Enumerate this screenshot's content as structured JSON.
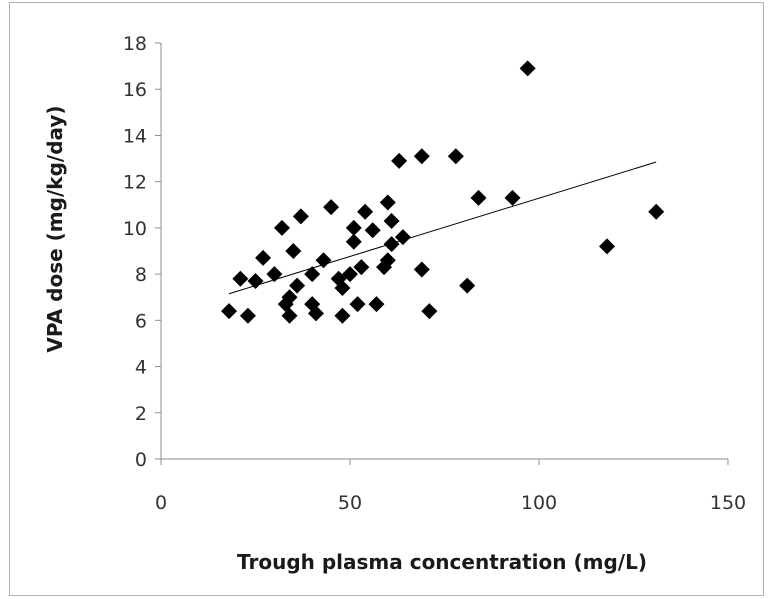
{
  "chart_data": {
    "type": "scatter",
    "title": "",
    "xlabel": "Trough plasma concentration (mg/L)",
    "ylabel": "VPA dose (mg/kg/day)",
    "xlim": [
      0,
      150
    ],
    "ylim": [
      0,
      18
    ],
    "x_ticks": [
      "0",
      "50",
      "100",
      "150"
    ],
    "y_ticks": [
      "0",
      "2",
      "4",
      "6",
      "8",
      "10",
      "12",
      "14",
      "16",
      "18"
    ],
    "grid": false,
    "legend": "none",
    "marker": "diamond",
    "marker_color": "#000000",
    "points": [
      [
        18,
        6.4
      ],
      [
        21,
        7.8
      ],
      [
        23,
        6.2
      ],
      [
        25,
        7.7
      ],
      [
        27,
        8.7
      ],
      [
        30,
        8.0
      ],
      [
        32,
        10.0
      ],
      [
        33,
        6.7
      ],
      [
        34,
        7.0
      ],
      [
        34,
        6.2
      ],
      [
        35,
        9.0
      ],
      [
        36,
        7.5
      ],
      [
        37,
        10.5
      ],
      [
        40,
        8.0
      ],
      [
        40,
        6.7
      ],
      [
        41,
        6.3
      ],
      [
        43,
        8.6
      ],
      [
        45,
        10.9
      ],
      [
        47,
        7.8
      ],
      [
        48,
        6.2
      ],
      [
        48,
        7.4
      ],
      [
        50,
        8.0
      ],
      [
        51,
        9.4
      ],
      [
        51,
        10.0
      ],
      [
        52,
        6.7
      ],
      [
        53,
        8.3
      ],
      [
        54,
        10.7
      ],
      [
        56,
        9.9
      ],
      [
        57,
        6.7
      ],
      [
        59,
        8.3
      ],
      [
        60,
        8.6
      ],
      [
        60,
        11.1
      ],
      [
        61,
        9.3
      ],
      [
        61,
        10.3
      ],
      [
        63,
        12.9
      ],
      [
        64,
        9.6
      ],
      [
        69,
        8.2
      ],
      [
        69,
        13.1
      ],
      [
        71,
        6.4
      ],
      [
        78,
        13.1
      ],
      [
        81,
        7.5
      ],
      [
        84,
        11.3
      ],
      [
        93,
        11.3
      ],
      [
        97,
        16.9
      ],
      [
        118,
        9.2
      ],
      [
        131,
        10.7
      ]
    ],
    "trendline": {
      "type": "linear",
      "x": [
        18,
        131
      ],
      "y": [
        7.15,
        12.85
      ],
      "color": "#000000"
    }
  }
}
